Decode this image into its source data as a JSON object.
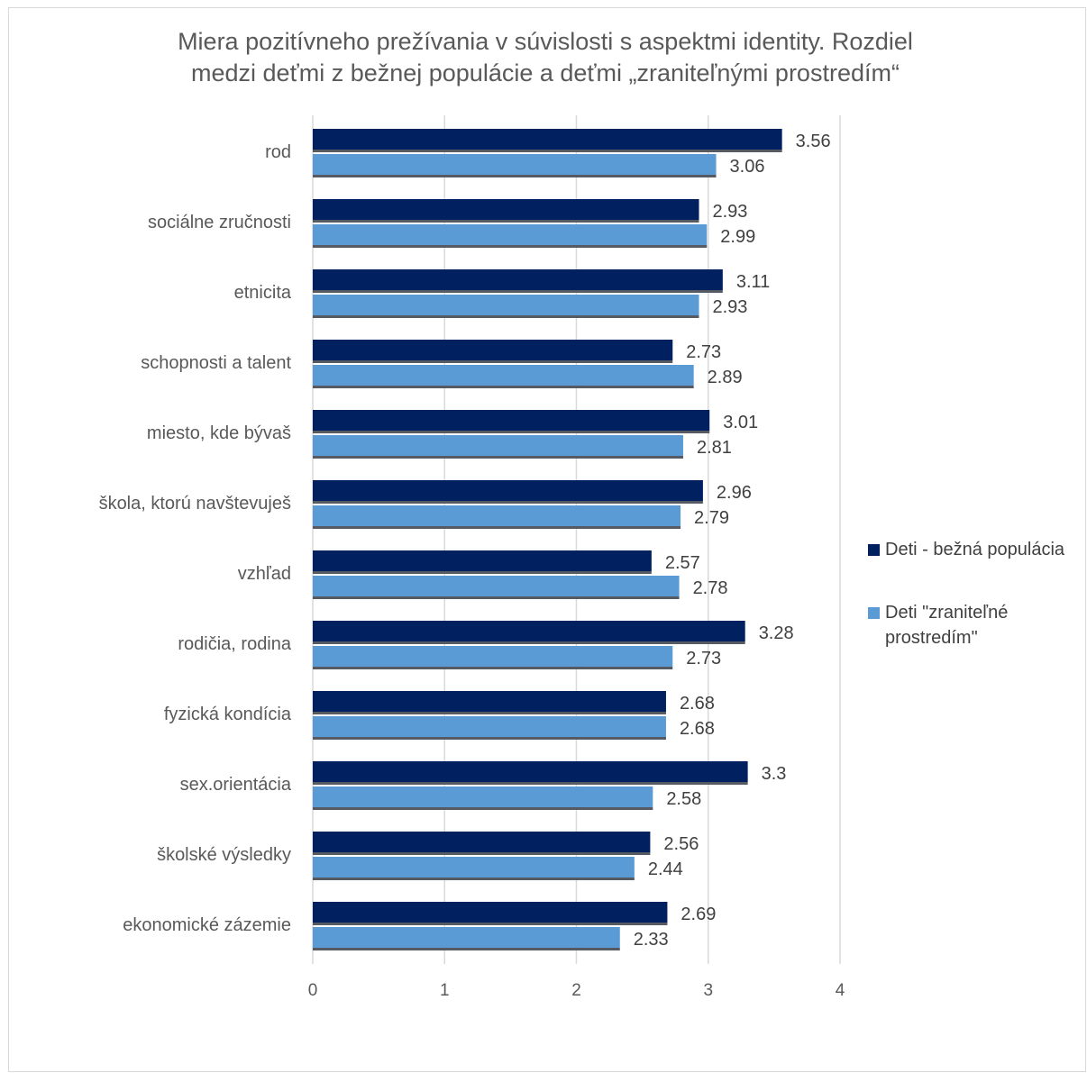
{
  "colors": {
    "series_1": "#002060",
    "series_2": "#5B9BD5",
    "grid": "#d9d9d9",
    "text": "#595959"
  },
  "chart_data": {
    "type": "bar",
    "orientation": "horizontal",
    "title_lines": [
      "Miera pozitívneho prežívania v súvislosti s aspektmi identity. Rozdiel",
      "medzi deťmi z bežnej populácie a deťmi „zraniteľnými prostredím“"
    ],
    "categories": [
      "rod",
      "sociálne zručnosti",
      "etnicita",
      "schopnosti a talent",
      "miesto, kde bývaš",
      "škola, ktorú navštevuješ",
      "vzhľad",
      "rodičia, rodina",
      "fyzická kondícia",
      "sex.orientácia",
      "školské výsledky",
      "ekonomické zázemie"
    ],
    "series": [
      {
        "name": "Deti - bežná populácia",
        "values": [
          3.56,
          2.93,
          3.11,
          2.73,
          3.01,
          2.96,
          2.57,
          3.28,
          2.68,
          3.3,
          2.56,
          2.69
        ],
        "labels": [
          "3.56",
          "2.93",
          "3.11",
          "2.73",
          "3.01",
          "2.96",
          "2.57",
          "3.28",
          "2.68",
          "3.3",
          "2.56",
          "2.69"
        ]
      },
      {
        "name_lines": [
          "Deti \"zraniteľné",
          "prostredím\""
        ],
        "values": [
          3.06,
          2.99,
          2.93,
          2.89,
          2.81,
          2.79,
          2.78,
          2.73,
          2.68,
          2.58,
          2.44,
          2.33
        ],
        "labels": [
          "3.06",
          "2.99",
          "2.93",
          "2.89",
          "2.81",
          "2.79",
          "2.78",
          "2.73",
          "2.68",
          "2.58",
          "2.44",
          "2.33"
        ]
      }
    ],
    "xlim": [
      0,
      4
    ],
    "x_ticks": [
      "0",
      "1",
      "2",
      "3",
      "4"
    ],
    "grid": true,
    "legend_position": "right"
  }
}
